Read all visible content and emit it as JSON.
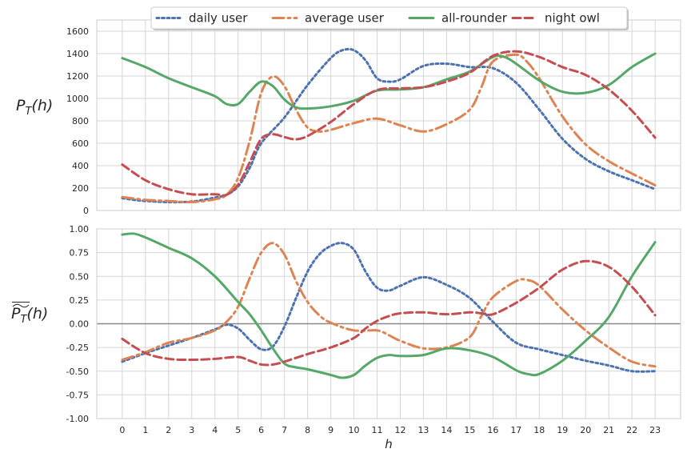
{
  "chart_data": [
    {
      "type": "line",
      "ylabel_main": "P",
      "ylabel_sub": "T",
      "ylabel_arg": "(h)",
      "xlabel": "",
      "ylim": [
        0,
        1700
      ],
      "yticks": [
        0,
        200,
        400,
        600,
        800,
        1000,
        1200,
        1400,
        1600
      ],
      "xlim": [
        -1.1,
        24.1
      ],
      "grid": true,
      "legend_position": "top-center",
      "series": [
        {
          "name": "daily user",
          "x": [
            0,
            0.5,
            1,
            2,
            3,
            4,
            4.5,
            5,
            5.5,
            6,
            7,
            8,
            9,
            9.5,
            10,
            10.5,
            11,
            11.5,
            12,
            13,
            14,
            15,
            16,
            17,
            18,
            19,
            20,
            21,
            22,
            23
          ],
          "y": [
            110,
            95,
            85,
            75,
            80,
            115,
            140,
            215,
            380,
            600,
            830,
            1120,
            1360,
            1430,
            1430,
            1340,
            1180,
            1150,
            1170,
            1290,
            1310,
            1280,
            1270,
            1140,
            900,
            640,
            460,
            350,
            270,
            190
          ]
        },
        {
          "name": "average user",
          "x": [
            0,
            1,
            2,
            3,
            4,
            4.5,
            5,
            5.5,
            6,
            6.5,
            7,
            7.5,
            8,
            8.5,
            9,
            10,
            11,
            12,
            13,
            14,
            15,
            15.5,
            16,
            17,
            17.5,
            18,
            19,
            20,
            21,
            22,
            23
          ],
          "y": [
            120,
            95,
            85,
            75,
            100,
            140,
            290,
            620,
            1050,
            1195,
            1110,
            900,
            740,
            705,
            720,
            780,
            820,
            760,
            705,
            770,
            900,
            1100,
            1330,
            1390,
            1320,
            1180,
            840,
            590,
            440,
            330,
            225
          ]
        },
        {
          "name": "all-rounder",
          "x": [
            0,
            1,
            2,
            3,
            4,
            4.5,
            5,
            5.5,
            6,
            6.5,
            7,
            7.5,
            8,
            9,
            10,
            11,
            12,
            13,
            14,
            15,
            16,
            16.5,
            17,
            18,
            19,
            20,
            21,
            22,
            23
          ],
          "y": [
            1360,
            1280,
            1180,
            1100,
            1020,
            950,
            950,
            1060,
            1150,
            1110,
            990,
            920,
            910,
            930,
            980,
            1070,
            1080,
            1100,
            1170,
            1240,
            1370,
            1370,
            1310,
            1160,
            1060,
            1050,
            1120,
            1280,
            1400
          ]
        },
        {
          "name": "night owl",
          "x": [
            0,
            1,
            2,
            3,
            4,
            4.5,
            5,
            5.5,
            6,
            6.5,
            7,
            7.5,
            8,
            9,
            10,
            11,
            12,
            13,
            14,
            15,
            16,
            17,
            18,
            19,
            20,
            21,
            22,
            23
          ],
          "y": [
            410,
            270,
            190,
            145,
            145,
            140,
            230,
            430,
            640,
            680,
            655,
            635,
            665,
            790,
            950,
            1075,
            1090,
            1100,
            1150,
            1230,
            1380,
            1420,
            1370,
            1280,
            1210,
            1080,
            890,
            650
          ]
        }
      ]
    },
    {
      "type": "line",
      "ylabel_main": "P",
      "ylabel_sub": "T",
      "ylabel_arg": "(h)",
      "xlabel": "h",
      "ylim": [
        -1.0,
        1.0
      ],
      "yticks": [
        -1.0,
        -0.75,
        -0.5,
        -0.25,
        0.0,
        0.25,
        0.5,
        0.75,
        1.0
      ],
      "xlim": [
        -1.1,
        24.1
      ],
      "xticks": [
        0,
        1,
        2,
        3,
        4,
        5,
        6,
        7,
        8,
        9,
        10,
        11,
        12,
        13,
        14,
        15,
        16,
        17,
        18,
        19,
        20,
        21,
        22,
        23
      ],
      "hline": 0.0,
      "grid": true,
      "series": [
        {
          "name": "daily user",
          "x": [
            0,
            1,
            2,
            3,
            4,
            4.5,
            5,
            5.5,
            6,
            6.5,
            7,
            7.5,
            8,
            8.5,
            9,
            9.5,
            10,
            10.5,
            11,
            11.5,
            12,
            13,
            14,
            15,
            16,
            17,
            18,
            19,
            20,
            21,
            22,
            23
          ],
          "y": [
            -0.4,
            -0.31,
            -0.23,
            -0.15,
            -0.06,
            -0.01,
            -0.05,
            -0.17,
            -0.27,
            -0.24,
            -0.03,
            0.27,
            0.55,
            0.73,
            0.82,
            0.85,
            0.78,
            0.55,
            0.38,
            0.35,
            0.4,
            0.49,
            0.41,
            0.27,
            0.02,
            -0.2,
            -0.27,
            -0.33,
            -0.39,
            -0.44,
            -0.5,
            -0.5
          ]
        },
        {
          "name": "average user",
          "x": [
            0,
            1,
            2,
            3,
            4,
            4.5,
            5,
            5.5,
            6,
            6.5,
            7,
            7.5,
            8,
            8.5,
            9,
            10,
            11,
            11.5,
            12,
            13,
            14,
            15,
            15.5,
            16,
            17,
            17.5,
            18,
            19,
            20,
            21,
            22,
            23
          ],
          "y": [
            -0.38,
            -0.3,
            -0.2,
            -0.15,
            -0.07,
            0.02,
            0.18,
            0.48,
            0.75,
            0.85,
            0.73,
            0.45,
            0.23,
            0.09,
            0.01,
            -0.07,
            -0.07,
            -0.12,
            -0.18,
            -0.26,
            -0.25,
            -0.14,
            0.08,
            0.28,
            0.45,
            0.46,
            0.4,
            0.15,
            -0.07,
            -0.25,
            -0.4,
            -0.45
          ]
        },
        {
          "name": "all-rounder",
          "x": [
            0,
            0.5,
            1,
            2,
            3,
            4,
            5,
            5.5,
            6,
            6.5,
            7,
            7.5,
            8,
            9,
            9.5,
            10,
            10.5,
            11,
            11.5,
            12,
            13,
            14,
            15,
            16,
            17,
            17.5,
            18,
            19,
            20,
            21,
            22,
            23
          ],
          "y": [
            0.94,
            0.95,
            0.91,
            0.8,
            0.69,
            0.5,
            0.23,
            0.1,
            -0.07,
            -0.26,
            -0.42,
            -0.46,
            -0.48,
            -0.54,
            -0.57,
            -0.54,
            -0.44,
            -0.36,
            -0.33,
            -0.34,
            -0.33,
            -0.26,
            -0.28,
            -0.35,
            -0.49,
            -0.53,
            -0.53,
            -0.39,
            -0.18,
            0.07,
            0.5,
            0.86
          ]
        },
        {
          "name": "night owl",
          "x": [
            0,
            1,
            2,
            3,
            4,
            5,
            5.5,
            6,
            6.5,
            7,
            8,
            9,
            10,
            10.5,
            11,
            11.5,
            12,
            13,
            14,
            15,
            15.5,
            16,
            17,
            18,
            19,
            20,
            21,
            22,
            23
          ],
          "y": [
            -0.16,
            -0.31,
            -0.37,
            -0.38,
            -0.37,
            -0.35,
            -0.39,
            -0.43,
            -0.43,
            -0.4,
            -0.32,
            -0.25,
            -0.15,
            -0.05,
            0.03,
            0.08,
            0.11,
            0.12,
            0.1,
            0.12,
            0.11,
            0.1,
            0.22,
            0.38,
            0.57,
            0.66,
            0.6,
            0.39,
            0.09
          ]
        }
      ]
    }
  ],
  "legend": [
    {
      "label": "daily user",
      "color": "#4c72b0",
      "dash": "3,3.5",
      "width": 3
    },
    {
      "label": "average user",
      "color": "#dd8452",
      "dash": "14,5,3,5",
      "width": 3
    },
    {
      "label": "all-rounder",
      "color": "#55a868",
      "dash": "",
      "width": 3
    },
    {
      "label": "night owl",
      "color": "#c44e52",
      "dash": "10,5",
      "width": 3
    }
  ],
  "colors": {
    "daily user": "#4c72b0",
    "average user": "#dd8452",
    "all-rounder": "#55a868",
    "night owl": "#c44e52",
    "zero_line": "#888888",
    "grid": "#d6d6d6"
  }
}
